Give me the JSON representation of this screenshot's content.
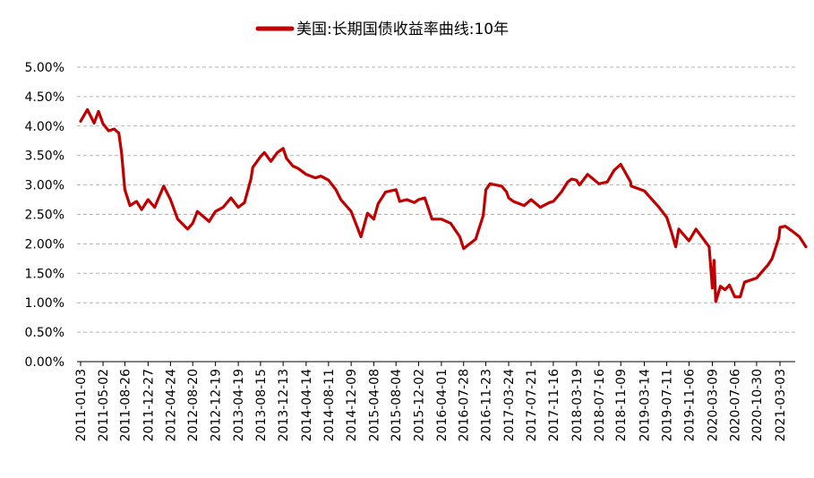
{
  "chart_data": {
    "type": "line",
    "title": "",
    "xlabel": "",
    "ylabel": "",
    "ylim": [
      0,
      5
    ],
    "yticks": [
      "0.00%",
      "0.50%",
      "1.00%",
      "1.50%",
      "2.00%",
      "2.50%",
      "3.00%",
      "3.50%",
      "4.00%",
      "4.50%",
      "5.00%"
    ],
    "xticks": [
      "2011-01-03",
      "2011-05-02",
      "2011-08-26",
      "2011-12-27",
      "2012-04-24",
      "2012-08-20",
      "2012-12-19",
      "2013-04-19",
      "2013-08-15",
      "2013-12-13",
      "2014-04-14",
      "2014-08-11",
      "2014-12-09",
      "2015-04-08",
      "2015-08-04",
      "2015-12-02",
      "2016-04-01",
      "2016-07-28",
      "2016-11-23",
      "2017-03-24",
      "2017-07-21",
      "2017-11-16",
      "2018-03-19",
      "2018-07-16",
      "2018-11-09",
      "2019-03-14",
      "2019-07-11",
      "2019-11-06",
      "2020-03-09",
      "2020-07-06",
      "2020-10-30",
      "2021-03-03"
    ],
    "grid": "horizontal-dashed",
    "legend_position": "top-center",
    "color": "#c00000",
    "series": [
      {
        "name": "美国:长期国债收益率曲线:10年",
        "x": [
          "2011-01-03",
          "2011-02-08",
          "2011-03-16",
          "2011-04-08",
          "2011-05-02",
          "2011-06-01",
          "2011-06-30",
          "2011-07-25",
          "2011-08-08",
          "2011-08-26",
          "2011-09-22",
          "2011-10-27",
          "2011-11-23",
          "2011-12-27",
          "2012-01-31",
          "2012-03-19",
          "2012-04-24",
          "2012-06-01",
          "2012-07-24",
          "2012-08-20",
          "2012-09-14",
          "2012-11-15",
          "2012-12-19",
          "2013-01-28",
          "2013-03-11",
          "2013-04-19",
          "2013-05-22",
          "2013-06-25",
          "2013-07-05",
          "2013-08-15",
          "2013-09-05",
          "2013-10-09",
          "2013-11-12",
          "2013-12-13",
          "2013-12-31",
          "2014-02-03",
          "2014-03-03",
          "2014-04-14",
          "2014-06-02",
          "2014-07-01",
          "2014-08-11",
          "2014-09-19",
          "2014-10-15",
          "2014-12-09",
          "2015-01-30",
          "2015-03-06",
          "2015-04-08",
          "2015-05-01",
          "2015-06-10",
          "2015-08-04",
          "2015-08-24",
          "2015-10-01",
          "2015-11-09",
          "2015-12-02",
          "2016-01-04",
          "2016-02-11",
          "2016-04-01",
          "2016-05-20",
          "2016-07-08",
          "2016-07-28",
          "2016-09-30",
          "2016-11-09",
          "2016-11-23",
          "2016-12-15",
          "2017-02-15",
          "2017-03-13",
          "2017-03-24",
          "2017-04-18",
          "2017-06-14",
          "2017-07-21",
          "2017-09-08",
          "2017-10-26",
          "2017-11-16",
          "2017-12-29",
          "2018-01-31",
          "2018-02-21",
          "2018-03-19",
          "2018-04-04",
          "2018-05-17",
          "2018-07-16",
          "2018-08-29",
          "2018-10-05",
          "2018-11-09",
          "2018-12-31",
          "2019-01-03",
          "2019-03-14",
          "2019-05-31",
          "2019-07-11",
          "2019-08-05",
          "2019-08-28",
          "2019-09-13",
          "2019-11-06",
          "2019-12-13",
          "2020-01-17",
          "2020-02-21",
          "2020-03-09",
          "2020-03-18",
          "2020-03-27",
          "2020-04-21",
          "2020-05-15",
          "2020-06-08",
          "2020-07-06",
          "2020-08-04",
          "2020-08-27",
          "2020-10-30",
          "2020-12-31",
          "2021-01-20",
          "2021-02-25",
          "2021-03-03",
          "2021-03-31",
          "2021-05-05",
          "2021-06-14",
          "2021-07-19"
        ],
        "values": [
          4.08,
          4.28,
          4.05,
          4.25,
          4.04,
          3.92,
          3.95,
          3.88,
          3.55,
          2.92,
          2.65,
          2.72,
          2.58,
          2.75,
          2.62,
          2.98,
          2.75,
          2.42,
          2.25,
          2.35,
          2.55,
          2.38,
          2.55,
          2.62,
          2.78,
          2.62,
          2.7,
          3.1,
          3.3,
          3.48,
          3.55,
          3.4,
          3.55,
          3.62,
          3.45,
          3.32,
          3.28,
          3.18,
          3.12,
          3.15,
          3.08,
          2.92,
          2.75,
          2.55,
          2.12,
          2.52,
          2.42,
          2.68,
          2.88,
          2.92,
          2.72,
          2.75,
          2.7,
          2.75,
          2.78,
          2.42,
          2.42,
          2.35,
          2.12,
          1.92,
          2.08,
          2.48,
          2.92,
          3.02,
          2.98,
          2.88,
          2.78,
          2.72,
          2.65,
          2.75,
          2.62,
          2.7,
          2.72,
          2.88,
          3.05,
          3.1,
          3.08,
          3.0,
          3.18,
          3.02,
          3.05,
          3.25,
          3.35,
          3.05,
          2.98,
          2.9,
          2.62,
          2.45,
          2.2,
          1.95,
          2.25,
          2.05,
          2.25,
          2.1,
          1.95,
          1.25,
          1.72,
          1.02,
          1.28,
          1.22,
          1.3,
          1.1,
          1.1,
          1.35,
          1.42,
          1.65,
          1.75,
          2.1,
          2.28,
          2.3,
          2.22,
          2.12,
          1.95
        ]
      }
    ]
  }
}
